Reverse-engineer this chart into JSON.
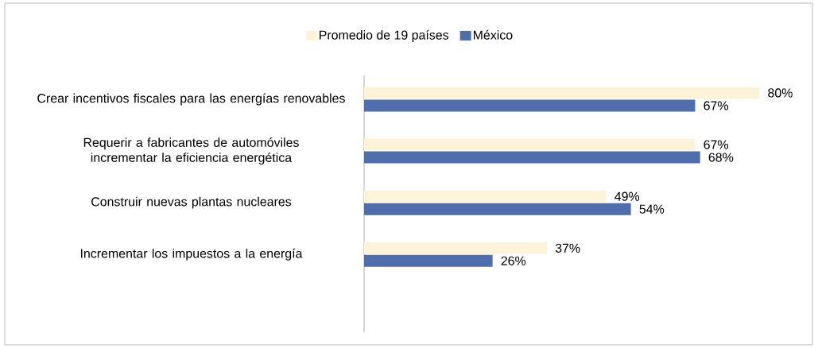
{
  "chart_data": {
    "type": "bar",
    "orientation": "horizontal",
    "categories": [
      "Crear incentivos fiscales para las energías renovables",
      "Requerir a fabricantes de automóviles incrementar la eficiencia energética",
      "Construir nuevas plantas nucleares",
      "Incrementar los impuestos a la energía"
    ],
    "series": [
      {
        "name": "Promedio de 19 países",
        "color": "#fcf3d8",
        "values": [
          80,
          67,
          49,
          37
        ],
        "value_labels": [
          "80%",
          "67%",
          "49%",
          "37%"
        ]
      },
      {
        "name": "México",
        "color": "#4f6eab",
        "values": [
          67,
          68,
          54,
          26
        ],
        "value_labels": [
          "67%",
          "68%",
          "54%",
          "26%"
        ]
      }
    ],
    "legend": "top"
  }
}
